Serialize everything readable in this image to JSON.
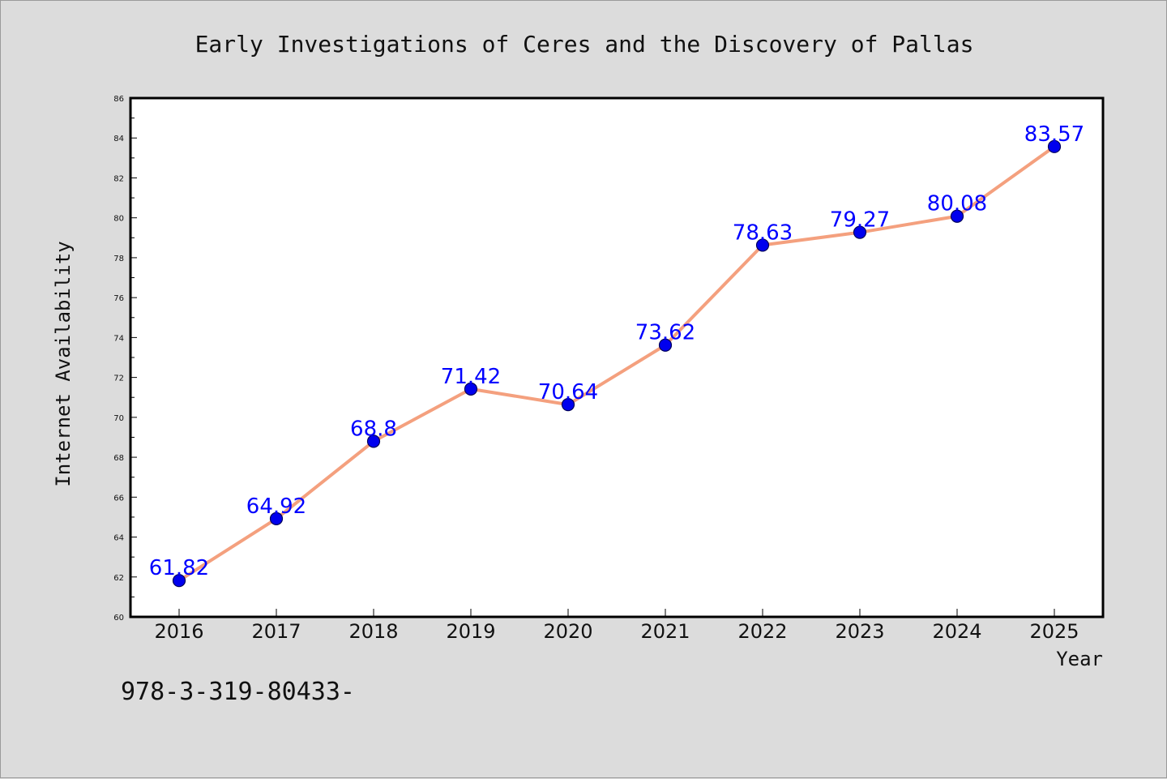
{
  "chart_data": {
    "type": "line",
    "title": "Early Investigations of Ceres and the Discovery of Pallas",
    "xlabel": "Year",
    "ylabel": "Internet Availability",
    "categories": [
      "2016",
      "2017",
      "2018",
      "2019",
      "2020",
      "2021",
      "2022",
      "2023",
      "2024",
      "2025"
    ],
    "series": [
      {
        "values": [
          61.82,
          64.92,
          68.8,
          71.42,
          70.64,
          73.62,
          78.63,
          79.27,
          80.08,
          83.57
        ],
        "data_labels": [
          "61.82",
          "64.92",
          "68.8",
          "71.42",
          "70.64",
          "73.62",
          "78.63",
          "79.27",
          "80.08",
          "83.57"
        ],
        "line_color": "#f4a07e",
        "marker_color": "#0000ee",
        "label_color": "#0000ff"
      }
    ],
    "ylim": [
      60,
      86
    ],
    "yticks": [
      "60",
      "62",
      "64",
      "66",
      "68",
      "70",
      "72",
      "74",
      "76",
      "78",
      "80",
      "82",
      "84",
      "86"
    ],
    "grid": false,
    "legend": "none",
    "plot_background": "#ffffff",
    "figure_background": "#dcdcdc"
  },
  "footnote": "978-3-319-80433-"
}
